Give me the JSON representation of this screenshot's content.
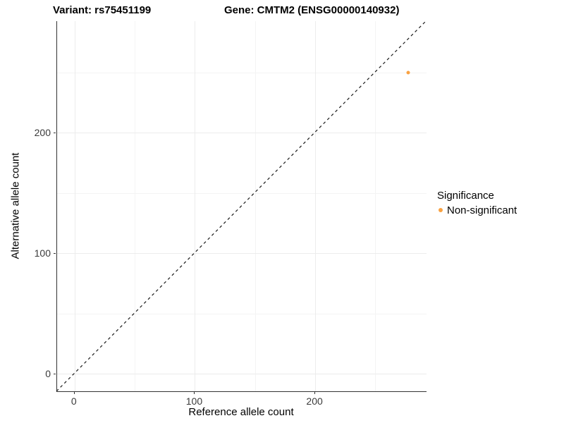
{
  "title": {
    "variant": "Variant: rs75451199",
    "gene": "Gene: CMTM2 (ENSG00000140932)"
  },
  "axes": {
    "x_label": "Reference allele count",
    "y_label": "Alternative allele count"
  },
  "legend": {
    "title": "Significance",
    "items": [
      {
        "label": "Non-significant",
        "color": "#F9A242"
      }
    ]
  },
  "colors": {
    "point": "#F9A242",
    "axis": "#333333",
    "grid_major": "#ececec",
    "grid_minor": "#f4f4f4",
    "reference_line": "#1a1a1a",
    "background": "#ffffff"
  },
  "chart_data": {
    "type": "scatter",
    "title": "Variant: rs75451199 | Gene: CMTM2 (ENSG00000140932)",
    "xlabel": "Reference allele count",
    "ylabel": "Alternative allele count",
    "xlim": [
      -14.5,
      292.5
    ],
    "ylim": [
      -14.5,
      292.5
    ],
    "x_ticks": [
      0,
      100,
      200
    ],
    "y_ticks": [
      0,
      100,
      200
    ],
    "minor_gridlines": [
      50,
      150,
      250
    ],
    "grid": "major and minor gridlines, very light gray, white background",
    "legend_position": "right",
    "series": [
      {
        "name": "Non-significant",
        "color": "#F9A242",
        "points": [
          {
            "x": 278,
            "y": 250
          }
        ]
      }
    ],
    "reference_line": {
      "type": "identity y=x",
      "style": "dashed",
      "color": "#1a1a1a"
    }
  }
}
